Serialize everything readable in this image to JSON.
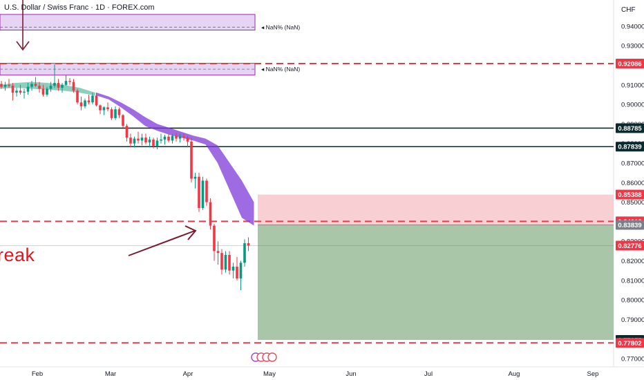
{
  "header": {
    "title": "U.S. Dollar / Swiss Franc · 1D · FOREX.com",
    "currency": "CHF"
  },
  "annotation_text": "reak",
  "zone_labels": [
    "NaN% (NaN)",
    "NaN% (NaN)"
  ],
  "colors": {
    "red_dashed": "#f23645",
    "dark_line": "#0b2a2e",
    "purple_zone": "#9c27b0",
    "stop_zone": "#f7c8cb",
    "target_zone": "#a5c3a4",
    "bull_candle": "#089981",
    "bear_candle": "#f23645",
    "ribbon_purple": "#7e3ad8",
    "ribbon_green": "#79c7b4",
    "arrow": "#7a1a2e"
  },
  "chart_data": {
    "type": "candlestick",
    "symbol": "USDCHF",
    "interval": "1D",
    "ylim": [
      0.77,
      0.9495
    ],
    "y_ticks": [
      "0.94000",
      "0.93000",
      "0.92000",
      "0.91000",
      "0.90000",
      "0.89000",
      "0.88000",
      "0.87000",
      "0.86000",
      "0.85000",
      "0.84000",
      "0.83000",
      "0.82000",
      "0.81000",
      "0.80000",
      "0.79000",
      "0.78000",
      "0.77000"
    ],
    "x_ticks": [
      "Feb",
      "Mar",
      "Apr",
      "May",
      "Jun",
      "Jul",
      "Aug",
      "Sep"
    ],
    "price_labels": [
      {
        "value": 0.92086,
        "text": "0.92086",
        "kind": "red"
      },
      {
        "value": 0.88785,
        "text": "0.88785",
        "kind": "dark"
      },
      {
        "value": 0.87839,
        "text": "0.87839",
        "kind": "dark"
      },
      {
        "value": 0.85388,
        "text": "0.85388",
        "kind": "red"
      },
      {
        "value": 0.84018,
        "text": "0.84018",
        "kind": "red"
      },
      {
        "value": 0.83839,
        "text": "0.83839",
        "kind": "grey"
      },
      {
        "value": 0.82776,
        "text": "0.82776",
        "kind": "red"
      },
      {
        "value": 0.77955,
        "text": "0.77955",
        "kind": "dark"
      },
      {
        "value": 0.77802,
        "text": "0.77802",
        "kind": "red"
      }
    ],
    "horizontal_lines": [
      {
        "value": 0.92086,
        "style": "red-dashed"
      },
      {
        "value": 0.88785,
        "style": "dark-solid"
      },
      {
        "value": 0.87839,
        "style": "dark-solid"
      },
      {
        "value": 0.84018,
        "style": "red-dashed"
      },
      {
        "value": 0.77802,
        "style": "red-dashed"
      }
    ],
    "zones": [
      {
        "top": 0.946,
        "bottom": 0.938,
        "mid": 0.9395
      },
      {
        "top": 0.921,
        "bottom": 0.915,
        "mid": 0.918
      }
    ],
    "position": {
      "entry": 0.83839,
      "stop": 0.85388,
      "target": 0.77955
    },
    "candles": [
      [
        0.9105,
        0.912,
        0.908,
        0.909
      ],
      [
        0.909,
        0.9115,
        0.907,
        0.91
      ],
      [
        0.91,
        0.913,
        0.9085,
        0.9095
      ],
      [
        0.9095,
        0.911,
        0.902,
        0.906
      ],
      [
        0.906,
        0.9085,
        0.904,
        0.907
      ],
      [
        0.907,
        0.91,
        0.905,
        0.906
      ],
      [
        0.906,
        0.908,
        0.903,
        0.9065
      ],
      [
        0.9065,
        0.911,
        0.905,
        0.909
      ],
      [
        0.909,
        0.912,
        0.907,
        0.9105
      ],
      [
        0.9105,
        0.914,
        0.909,
        0.9095
      ],
      [
        0.9095,
        0.9115,
        0.906,
        0.908
      ],
      [
        0.908,
        0.91,
        0.904,
        0.905
      ],
      [
        0.905,
        0.909,
        0.904,
        0.908
      ],
      [
        0.908,
        0.9115,
        0.9065,
        0.9095
      ],
      [
        0.9095,
        0.9205,
        0.9085,
        0.911
      ],
      [
        0.911,
        0.913,
        0.907,
        0.9085
      ],
      [
        0.9085,
        0.911,
        0.906,
        0.91
      ],
      [
        0.91,
        0.915,
        0.9095,
        0.912
      ],
      [
        0.912,
        0.9135,
        0.91,
        0.9115
      ],
      [
        0.9115,
        0.913,
        0.906,
        0.907
      ],
      [
        0.907,
        0.908,
        0.9,
        0.901
      ],
      [
        0.901,
        0.904,
        0.897,
        0.899
      ],
      [
        0.899,
        0.903,
        0.898,
        0.902
      ],
      [
        0.902,
        0.905,
        0.9,
        0.901
      ],
      [
        0.901,
        0.906,
        0.9,
        0.9045
      ],
      [
        0.9045,
        0.906,
        0.899,
        0.8995
      ],
      [
        0.8995,
        0.9,
        0.895,
        0.897
      ],
      [
        0.897,
        0.899,
        0.8945,
        0.8985
      ],
      [
        0.8985,
        0.901,
        0.8965,
        0.8975
      ],
      [
        0.8975,
        0.8985,
        0.892,
        0.893
      ],
      [
        0.893,
        0.899,
        0.892,
        0.8975
      ],
      [
        0.8975,
        0.8985,
        0.893,
        0.8945
      ],
      [
        0.8945,
        0.895,
        0.888,
        0.889
      ],
      [
        0.889,
        0.89,
        0.881,
        0.883
      ],
      [
        0.883,
        0.885,
        0.878,
        0.88
      ],
      [
        0.88,
        0.8835,
        0.878,
        0.8825
      ],
      [
        0.8825,
        0.886,
        0.88,
        0.8815
      ],
      [
        0.8815,
        0.885,
        0.879,
        0.883
      ],
      [
        0.883,
        0.885,
        0.8795,
        0.8805
      ],
      [
        0.8805,
        0.8835,
        0.878,
        0.882
      ],
      [
        0.882,
        0.883,
        0.8775,
        0.8785
      ],
      [
        0.8785,
        0.883,
        0.877,
        0.8815
      ],
      [
        0.8815,
        0.885,
        0.88,
        0.882
      ],
      [
        0.882,
        0.8845,
        0.8795,
        0.8835
      ],
      [
        0.8835,
        0.885,
        0.8805,
        0.8815
      ],
      [
        0.8815,
        0.885,
        0.88,
        0.884
      ],
      [
        0.884,
        0.8855,
        0.881,
        0.8825
      ],
      [
        0.8825,
        0.885,
        0.8805,
        0.8835
      ],
      [
        0.8835,
        0.885,
        0.8815,
        0.883
      ],
      [
        0.883,
        0.884,
        0.878,
        0.881
      ],
      [
        0.881,
        0.883,
        0.86,
        0.862
      ],
      [
        0.862,
        0.865,
        0.857,
        0.863
      ],
      [
        0.863,
        0.865,
        0.845,
        0.847
      ],
      [
        0.847,
        0.863,
        0.846,
        0.861
      ],
      [
        0.861,
        0.862,
        0.848,
        0.85
      ],
      [
        0.85,
        0.852,
        0.836,
        0.838
      ],
      [
        0.838,
        0.839,
        0.82,
        0.825
      ],
      [
        0.825,
        0.83,
        0.818,
        0.824
      ],
      [
        0.824,
        0.826,
        0.813,
        0.8155
      ],
      [
        0.8155,
        0.825,
        0.814,
        0.823
      ],
      [
        0.823,
        0.825,
        0.813,
        0.815
      ],
      [
        0.815,
        0.819,
        0.811,
        0.817
      ],
      [
        0.817,
        0.822,
        0.81,
        0.811
      ],
      [
        0.811,
        0.82,
        0.805,
        0.819
      ],
      [
        0.819,
        0.831,
        0.817,
        0.829
      ],
      [
        0.829,
        0.832,
        0.825,
        0.8278
      ]
    ],
    "ribbon": {
      "green": [
        [
          0.908,
          0.91
        ],
        [
          0.9085,
          0.911
        ],
        [
          0.908,
          0.9115
        ],
        [
          0.9075,
          0.911
        ],
        [
          0.907,
          0.91
        ],
        [
          0.906,
          0.9085
        ],
        [
          0.9045,
          0.906
        ]
      ],
      "purple": [
        [
          0.9045,
          0.906
        ],
        [
          0.9025,
          0.904
        ],
        [
          0.8985,
          0.901
        ],
        [
          0.894,
          0.8975
        ],
        [
          0.889,
          0.8935
        ],
        [
          0.8865,
          0.89
        ],
        [
          0.8845,
          0.888
        ],
        [
          0.883,
          0.886
        ],
        [
          0.8815,
          0.884
        ],
        [
          0.8795,
          0.8825
        ],
        [
          0.87,
          0.879
        ],
        [
          0.856,
          0.87
        ],
        [
          0.842,
          0.861
        ],
        [
          0.838,
          0.85
        ]
      ]
    }
  }
}
